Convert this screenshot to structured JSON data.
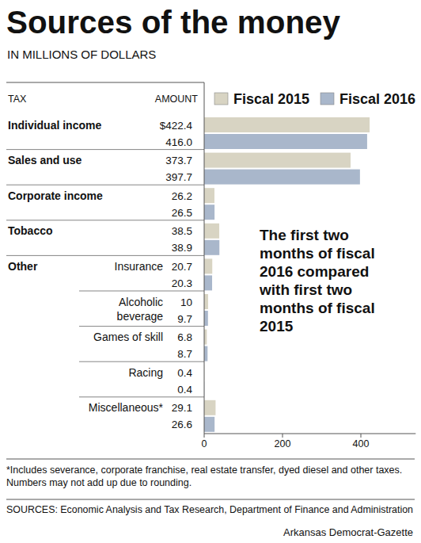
{
  "chart_data": {
    "type": "bar",
    "orientation": "horizontal",
    "title": "Sources of the money",
    "subtitle": "IN MILLIONS OF DOLLARS",
    "column_headers": [
      "TAX",
      "AMOUNT"
    ],
    "categories": [
      "Individual income",
      "Sales and use",
      "Corporate income",
      "Tobacco",
      "Insurance",
      "Alcoholic beverage",
      "Games of skill",
      "Racing",
      "Miscellaneous*"
    ],
    "annotations": [
      {
        "text": "Other",
        "category": "Insurance"
      },
      {
        "text": "The first two months of fiscal 2016 compared with first two months of fiscal 2015"
      }
    ],
    "series": [
      {
        "name": "Fiscal 2015",
        "color": "#d8d4c3",
        "values": [
          422.4,
          373.7,
          26.2,
          38.5,
          20.7,
          10,
          6.8,
          0.4,
          29.1
        ],
        "value_labels": [
          "$422.4",
          "373.7",
          "26.2",
          "38.5",
          "20.7",
          "10",
          "6.8",
          "0.4",
          "29.1"
        ]
      },
      {
        "name": "Fiscal 2016",
        "color": "#a9b7cb",
        "values": [
          416.0,
          397.7,
          26.5,
          38.9,
          20.3,
          9.7,
          8.7,
          0.4,
          26.6
        ],
        "value_labels": [
          "416.0",
          "397.7",
          "26.5",
          "38.9",
          "20.3",
          "9.7",
          "8.7",
          "0.4",
          "26.6"
        ]
      }
    ],
    "data_labels": true,
    "xlim": [
      0,
      540
    ],
    "xticks": [
      0,
      200,
      400
    ],
    "grid": false,
    "legend": "top",
    "notes": [
      "*Includes severance, corporate franchise, real estate transfer, dyed diesel and other taxes.",
      "Numbers may not add up due to rounding."
    ],
    "source": "SOURCES: Economic Analysis and Tax Research, Department of Finance and Administration",
    "credit": "Arkansas Democrat-Gazette"
  }
}
